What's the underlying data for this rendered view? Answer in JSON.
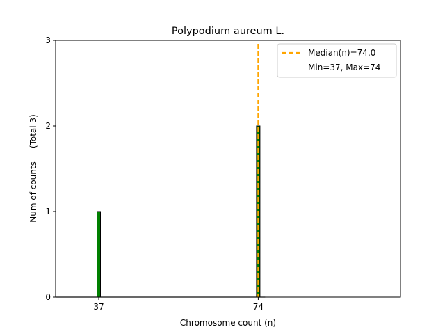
{
  "chart_data": {
    "type": "bar",
    "title": "Polypodium aureum L.",
    "xlabel": "Chromosome count (n)",
    "ylabel": "Num of counts     (Total 3)",
    "xlim": [
      27,
      107
    ],
    "ylim": [
      0,
      3
    ],
    "x_ticks": [
      "37",
      "74"
    ],
    "y_ticks": [
      "0",
      "1",
      "2",
      "3"
    ],
    "bars": [
      {
        "x": 37,
        "count": 1
      },
      {
        "x": 74,
        "count": 2
      }
    ],
    "median": 74.0,
    "min": 37,
    "max": 74,
    "grid": false,
    "legend_position": "top-right",
    "legend": [
      {
        "label": "Median(n)=74.0",
        "style": "dashed-line"
      },
      {
        "label": "Min=37, Max=74",
        "style": "none"
      }
    ],
    "colors": {
      "bar_fill": "#008000",
      "bar_edge": "#000000",
      "median_line": "#ffa500",
      "axes": "#000000",
      "background": "#ffffff"
    }
  }
}
